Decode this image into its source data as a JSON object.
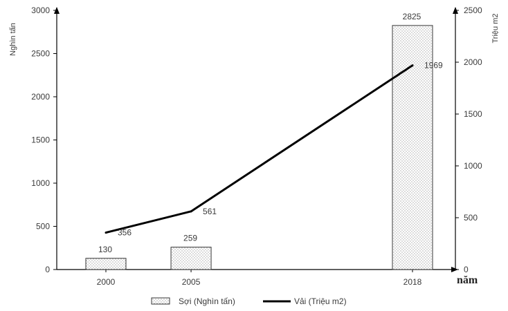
{
  "chart_data": {
    "type": "bar+line",
    "categories": [
      "2000",
      "2005",
      "2018"
    ],
    "x_unit_label": "năm",
    "left_axis": {
      "label": "Nghìn tấn",
      "ylim": [
        0,
        3000
      ],
      "ticks": [
        "0",
        "500",
        "1000",
        "1500",
        "2000",
        "2500",
        "3000"
      ]
    },
    "right_axis": {
      "label": "Triệu m2",
      "ylim": [
        0,
        2500
      ],
      "ticks": [
        "0",
        "500",
        "1000",
        "1500",
        "2000",
        "2500"
      ]
    },
    "series": [
      {
        "name": "Sợi (Nghìn tấn)",
        "kind": "bar",
        "axis": "left",
        "values": [
          130,
          259,
          2825
        ],
        "labels": [
          "130",
          "259",
          "2825"
        ]
      },
      {
        "name": "Vải (Triệu m2)",
        "kind": "line",
        "axis": "right",
        "values": [
          356,
          561,
          1969
        ],
        "labels": [
          "356",
          "561",
          "1969"
        ]
      }
    ],
    "grid": false,
    "legend_position": "bottom"
  }
}
